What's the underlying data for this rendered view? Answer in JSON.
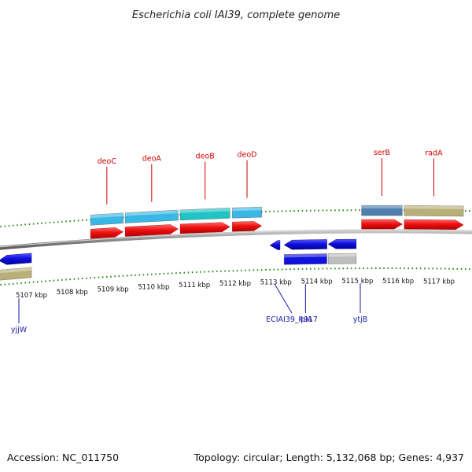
{
  "title": "Escherichia coli IAI39, complete genome",
  "footer": {
    "accession": "Accession: NC_011750",
    "summary": "Topology: circular; Length: 5,132,068 bp; Genes: 4,937"
  },
  "colors": {
    "forward_cds": "#ee1111",
    "reverse_cds": "#1111dd",
    "backbone": "#8a8a8a",
    "tick": "#2a8a1a",
    "label_forward": "#d40000",
    "label_reverse": "#1a1aa6"
  },
  "scale": {
    "unit": "kbp",
    "tick_labels": [
      "5107 kbp",
      "5108 kbp",
      "5109 kbp",
      "5110 kbp",
      "5111 kbp",
      "5112 kbp",
      "5113 kbp",
      "5114 kbp",
      "5115 kbp",
      "5116 kbp",
      "5117 kbp"
    ]
  },
  "genes_forward": [
    {
      "name": "deoC",
      "start_kbp": 5108.45,
      "end_kbp": 5109.25,
      "feature_color": "#39b8e6"
    },
    {
      "name": "deoA",
      "start_kbp": 5109.3,
      "end_kbp": 5110.6,
      "feature_color": "#39b8e6"
    },
    {
      "name": "deoB",
      "start_kbp": 5110.65,
      "end_kbp": 5111.87,
      "feature_color": "#1fc4c4"
    },
    {
      "name": "deoD",
      "start_kbp": 5111.93,
      "end_kbp": 5112.65,
      "feature_color": "#39b8e6"
    },
    {
      "name": "serB",
      "start_kbp": 5115.1,
      "end_kbp": 5116.1,
      "feature_color": "#4f7fb0"
    },
    {
      "name": "radA",
      "start_kbp": 5116.15,
      "end_kbp": 5117.6,
      "feature_color": "#b8b078"
    }
  ],
  "genes_reverse": [
    {
      "name": "yjjW",
      "start_kbp": 5106.2,
      "end_kbp": 5107.0,
      "feature_color": "#b8b078"
    },
    {
      "name": "ECIAI39_4917",
      "start_kbp": 5112.85,
      "end_kbp": 5113.1,
      "feature_color": ""
    },
    {
      "name": "lplA",
      "start_kbp": 5113.2,
      "end_kbp": 5114.25,
      "feature_color": "#1111dd"
    },
    {
      "name": "ytjB",
      "start_kbp": 5114.28,
      "end_kbp": 5114.97,
      "feature_color": "#bdbdbd"
    }
  ]
}
